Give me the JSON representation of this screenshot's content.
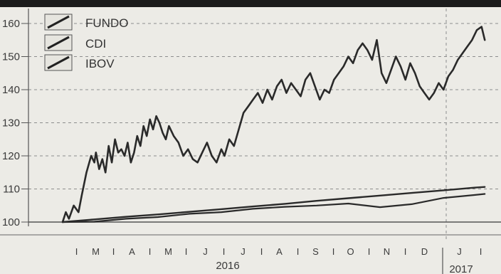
{
  "chart_data": {
    "type": "line",
    "title": "",
    "xlabel": "",
    "ylabel": "",
    "ylim": [
      97,
      162
    ],
    "yticks": [
      100,
      110,
      120,
      130,
      140,
      150,
      160
    ],
    "grid": true,
    "legend_position": "top-left",
    "months": [
      "J",
      "F",
      "M",
      "A",
      "M",
      "J",
      "J",
      "A",
      "S",
      "O",
      "N",
      "D",
      "J",
      "F"
    ],
    "month_labels_shown": [
      "M",
      "A",
      "M",
      "J",
      "J",
      "A",
      "S",
      "O",
      "N",
      "D",
      "J"
    ],
    "years": [
      "2016",
      "2017"
    ],
    "x_unit": "months since Jan 2016",
    "series": [
      {
        "name": "FUNDO",
        "x": [
          0.0,
          0.1,
          0.2,
          0.35,
          0.5,
          0.6,
          0.75,
          0.9,
          1.0,
          1.05,
          1.15,
          1.25,
          1.35,
          1.45,
          1.55,
          1.65,
          1.75,
          1.85,
          1.95,
          2.05,
          2.15,
          2.25,
          2.35,
          2.45,
          2.55,
          2.65,
          2.75,
          2.85,
          2.95,
          3.05,
          3.15,
          3.25,
          3.35,
          3.5,
          3.65,
          3.8,
          3.95,
          4.1,
          4.25,
          4.4,
          4.55,
          4.7,
          4.85,
          5.0,
          5.1,
          5.25,
          5.4,
          5.55,
          5.7,
          5.85,
          6.0,
          6.15,
          6.3,
          6.45,
          6.6,
          6.75,
          6.9,
          7.05,
          7.2,
          7.35,
          7.5,
          7.65,
          7.8,
          7.95,
          8.1,
          8.25,
          8.4,
          8.55,
          8.7,
          8.85,
          9.0,
          9.15,
          9.3,
          9.45,
          9.6,
          9.75,
          9.9,
          10.05,
          10.2,
          10.35,
          10.5,
          10.65,
          10.8,
          10.95,
          11.1,
          11.25,
          11.4,
          11.55,
          11.7,
          11.85,
          12.0,
          12.15,
          12.3,
          12.45,
          12.6,
          12.75,
          12.9,
          13.05,
          13.2,
          13.3
        ],
        "values": [
          100,
          103,
          101,
          105,
          103,
          108,
          115,
          120,
          118,
          121,
          116,
          119,
          115,
          123,
          118,
          125,
          121,
          122,
          120,
          124,
          118,
          121,
          126,
          123,
          129,
          126,
          131,
          128,
          132,
          130,
          127,
          125,
          129,
          126,
          124,
          120,
          122,
          119,
          118,
          121,
          124,
          120,
          118,
          122,
          120,
          125,
          123,
          128,
          133,
          135,
          137,
          139,
          136,
          140,
          137,
          141,
          143,
          139,
          142,
          140,
          138,
          143,
          145,
          141,
          137,
          140,
          139,
          143,
          145,
          147,
          150,
          148,
          152,
          154,
          152,
          149,
          155,
          145,
          142,
          146,
          150,
          147,
          143,
          148,
          145,
          141,
          139,
          137,
          139,
          142,
          140,
          144,
          146,
          149,
          151,
          153,
          155,
          158,
          159,
          155
        ]
      },
      {
        "name": "CDI",
        "x": [
          0,
          1,
          2,
          3,
          4,
          5,
          6,
          7,
          8,
          9,
          10,
          11,
          12,
          13,
          13.3
        ],
        "values": [
          100,
          100.8,
          101.6,
          102.3,
          103.1,
          103.9,
          104.7,
          105.5,
          106.4,
          107.2,
          108.0,
          108.8,
          109.6,
          110.4,
          110.6
        ]
      },
      {
        "name": "IBOV",
        "x": [
          0,
          1,
          2,
          3,
          4,
          5,
          6,
          7,
          8,
          9,
          10,
          11,
          12,
          13,
          13.3
        ],
        "values": [
          100,
          100.1,
          101.0,
          101.5,
          102.5,
          103.0,
          104.0,
          104.6,
          105.0,
          105.6,
          104.5,
          105.4,
          107.3,
          108.2,
          108.5
        ]
      }
    ]
  }
}
